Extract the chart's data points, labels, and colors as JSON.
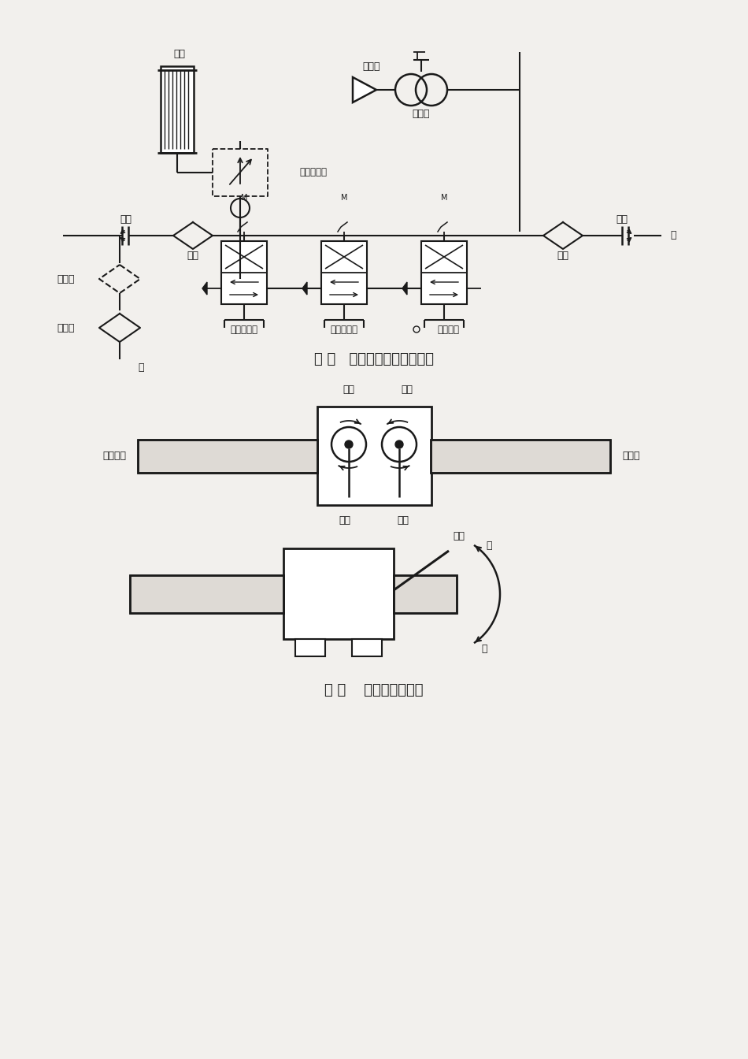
{
  "bg_color": "#f2f0ed",
  "line_color": "#1a1a1a",
  "fig1_title": "图 一   气、水系统原理示意图",
  "fig2_title": "图 二    操作机构说明图",
  "labels": {
    "qi_gang": "气缸",
    "xiao_yin_qi": "消音器",
    "qi_ma_da": "气马达",
    "kuai_su_pai_qi_fa": "快速排气阀",
    "jie_tou_left": "接头",
    "jie_tou_right": "接头",
    "lv_wang_left": "滤网",
    "lv_wang_right": "滤网",
    "zhu_you_qi": "注油器",
    "guo_lv_wang": "过滤网",
    "qi": "气",
    "shui": "水",
    "qi_gang_kong_zhi_fa": "气腿控制阀",
    "ma_da_kong_zhi_fa": "马达控制阀",
    "shui_kong_zhi_fa": "水控制阀",
    "qi_tui_shen_suo": "气腿伸缩",
    "chong_xi_shui": "冲洗水",
    "zui_da_left": "最大",
    "zui_da_right": "最大",
    "zui_xiao_left": "最小",
    "zui_xiao_right": "最小",
    "ma_da2": "马达",
    "guan": "关",
    "kai": "开"
  }
}
